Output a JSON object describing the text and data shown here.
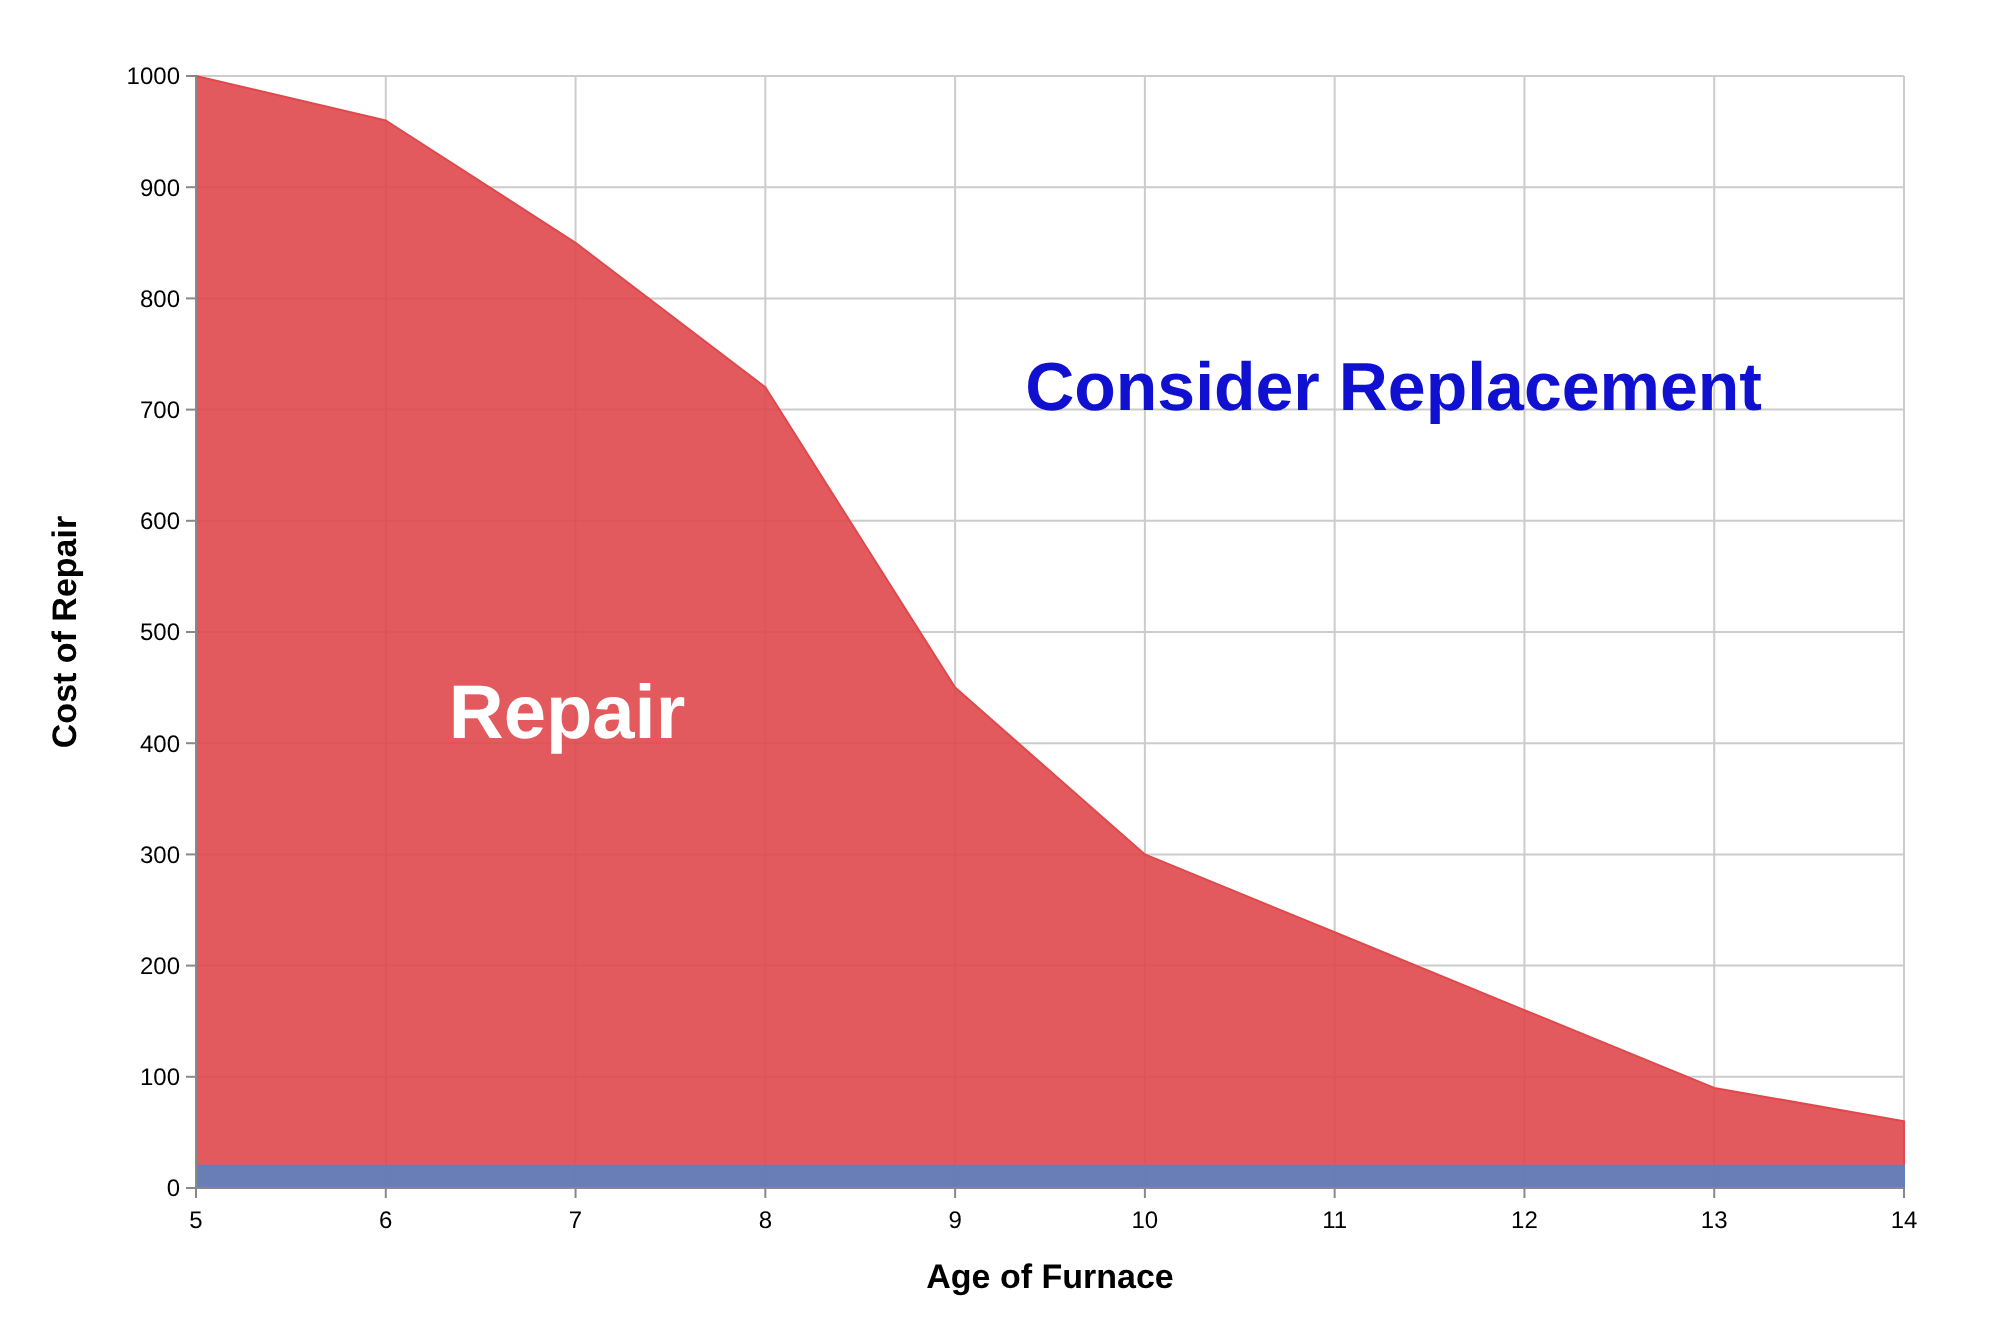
{
  "chart_data": {
    "type": "area",
    "xlabel": "Age of Furnace",
    "ylabel": "Cost of Repair",
    "x": [
      5,
      6,
      7,
      8,
      9,
      10,
      11,
      12,
      13,
      14
    ],
    "series": [
      {
        "color": "#e0484c",
        "values": [
          1000,
          960,
          850,
          720,
          450,
          300,
          230,
          160,
          90,
          60
        ]
      },
      {
        "color": "#5b82c0",
        "values": [
          20,
          20,
          20,
          20,
          20,
          20,
          20,
          20,
          20,
          20
        ]
      }
    ],
    "xlim": [
      5,
      14
    ],
    "xticks": [
      5,
      6,
      7,
      8,
      9,
      10,
      11,
      12,
      13,
      14
    ],
    "ylim": [
      0,
      1000
    ],
    "yticks": [
      0,
      100,
      200,
      300,
      400,
      500,
      600,
      700,
      800,
      900,
      1000
    ],
    "grid": true,
    "annotations": [
      "Repair",
      "Consider Replacement"
    ]
  }
}
